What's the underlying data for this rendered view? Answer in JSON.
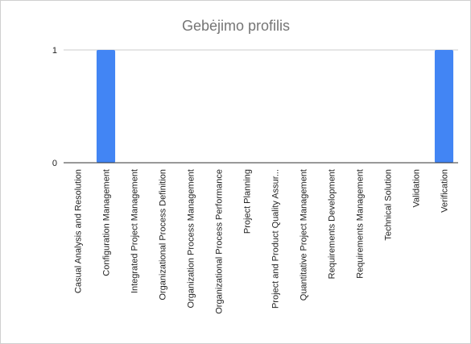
{
  "chart_data": {
    "type": "bar",
    "title": "Gebėjimo profilis",
    "xlabel": "",
    "ylabel": "",
    "ylim": [
      0,
      1
    ],
    "yticks": [
      "0",
      "1"
    ],
    "grid": true,
    "categories": [
      "Casual Analysis and Resolution",
      "Configuration Management",
      "Integrated Project Management",
      "Organizational Process Definition",
      "Organization Process Management",
      "Organizational Process Performance",
      "Project Planning",
      "Project and Product Quality Assur...",
      "Quantitative Project Management",
      "Requirements Development",
      "Requirements Management",
      "Technical Solution",
      "Validation",
      "Verification"
    ],
    "values": [
      0,
      1,
      0,
      0,
      0,
      0,
      0,
      0,
      0,
      0,
      0,
      0,
      0,
      1
    ],
    "bar_color": "#4285f4",
    "gridline_color": "#cccccc",
    "axis_color": "#333333"
  }
}
